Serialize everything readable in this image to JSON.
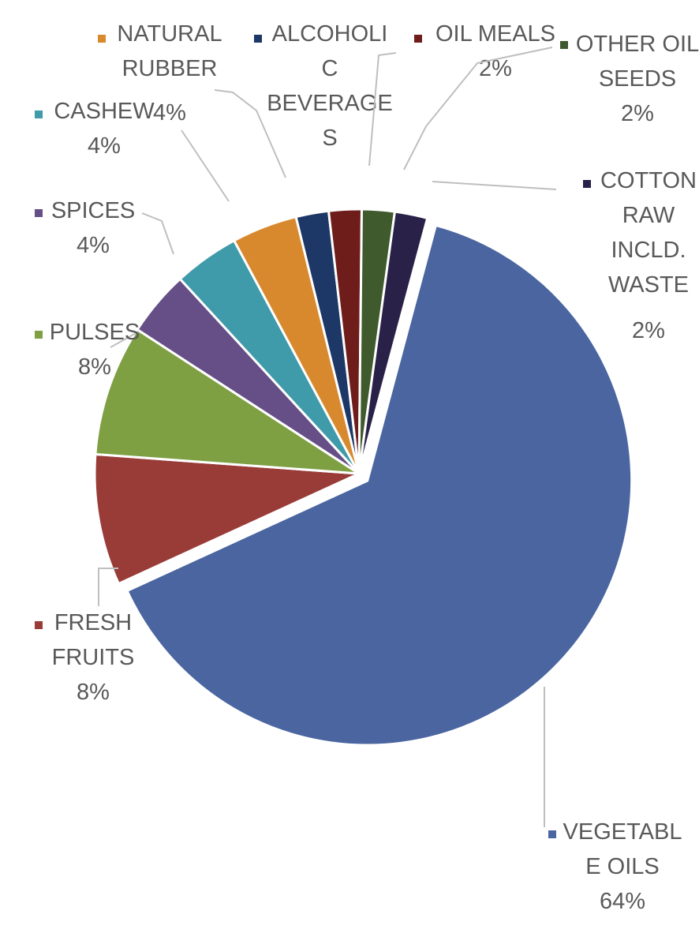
{
  "chart_data": {
    "type": "pie",
    "title": "",
    "slices": [
      {
        "name": "VEGETABLE OILS",
        "label_lines": [
          "VEGETABL",
          "E OILS"
        ],
        "pct_label": "64%",
        "value": 64,
        "color": "#4a65a0",
        "icon": "legend-square-icon"
      },
      {
        "name": "FRESH FRUITS",
        "label_lines": [
          "FRESH",
          "FRUITS"
        ],
        "pct_label": "8%",
        "value": 8,
        "color": "#993c38",
        "icon": "legend-square-icon"
      },
      {
        "name": "PULSES",
        "label_lines": [
          "PULSES"
        ],
        "pct_label": "8%",
        "value": 8,
        "color": "#7ea043",
        "icon": "legend-square-icon"
      },
      {
        "name": "SPICES",
        "label_lines": [
          "SPICES"
        ],
        "pct_label": "4%",
        "value": 4,
        "color": "#654f86",
        "icon": "legend-square-icon"
      },
      {
        "name": "CASHEW",
        "label_lines": [
          "CASHEW"
        ],
        "pct_label": "4%",
        "value": 4,
        "color": "#3f9aaa",
        "icon": "legend-square-icon"
      },
      {
        "name": "NATURAL RUBBER",
        "label_lines": [
          "NATURAL",
          "RUBBER"
        ],
        "pct_label": "4%",
        "value": 4,
        "color": "#d8892e",
        "icon": "legend-square-icon"
      },
      {
        "name": "ALCOHOLIC BEVERAGES",
        "label_lines": [
          "ALCOHOLI",
          "C",
          "BEVERAGE",
          "S"
        ],
        "pct_label": "",
        "value": 2,
        "color": "#1d3766",
        "icon": "legend-square-icon"
      },
      {
        "name": "OIL MEALS",
        "label_lines": [
          "OIL MEALS"
        ],
        "pct_label": "2%",
        "value": 2,
        "color": "#6e1d1b",
        "icon": "legend-square-icon"
      },
      {
        "name": "OTHER OIL SEEDS",
        "label_lines": [
          "OTHER OIL",
          "SEEDS"
        ],
        "pct_label": "2%",
        "value": 2,
        "color": "#3f5a2c",
        "icon": "legend-square-icon"
      },
      {
        "name": "COTTON RAW INCLD. WASTE",
        "label_lines": [
          "COTTON",
          "RAW",
          "INCLD.",
          "WASTE"
        ],
        "pct_label": "2%",
        "value": 2,
        "color": "#2a2148",
        "icon": "legend-square-icon"
      }
    ],
    "legend": "data-labels",
    "exploded_slice": "VEGETABLE OILS"
  }
}
